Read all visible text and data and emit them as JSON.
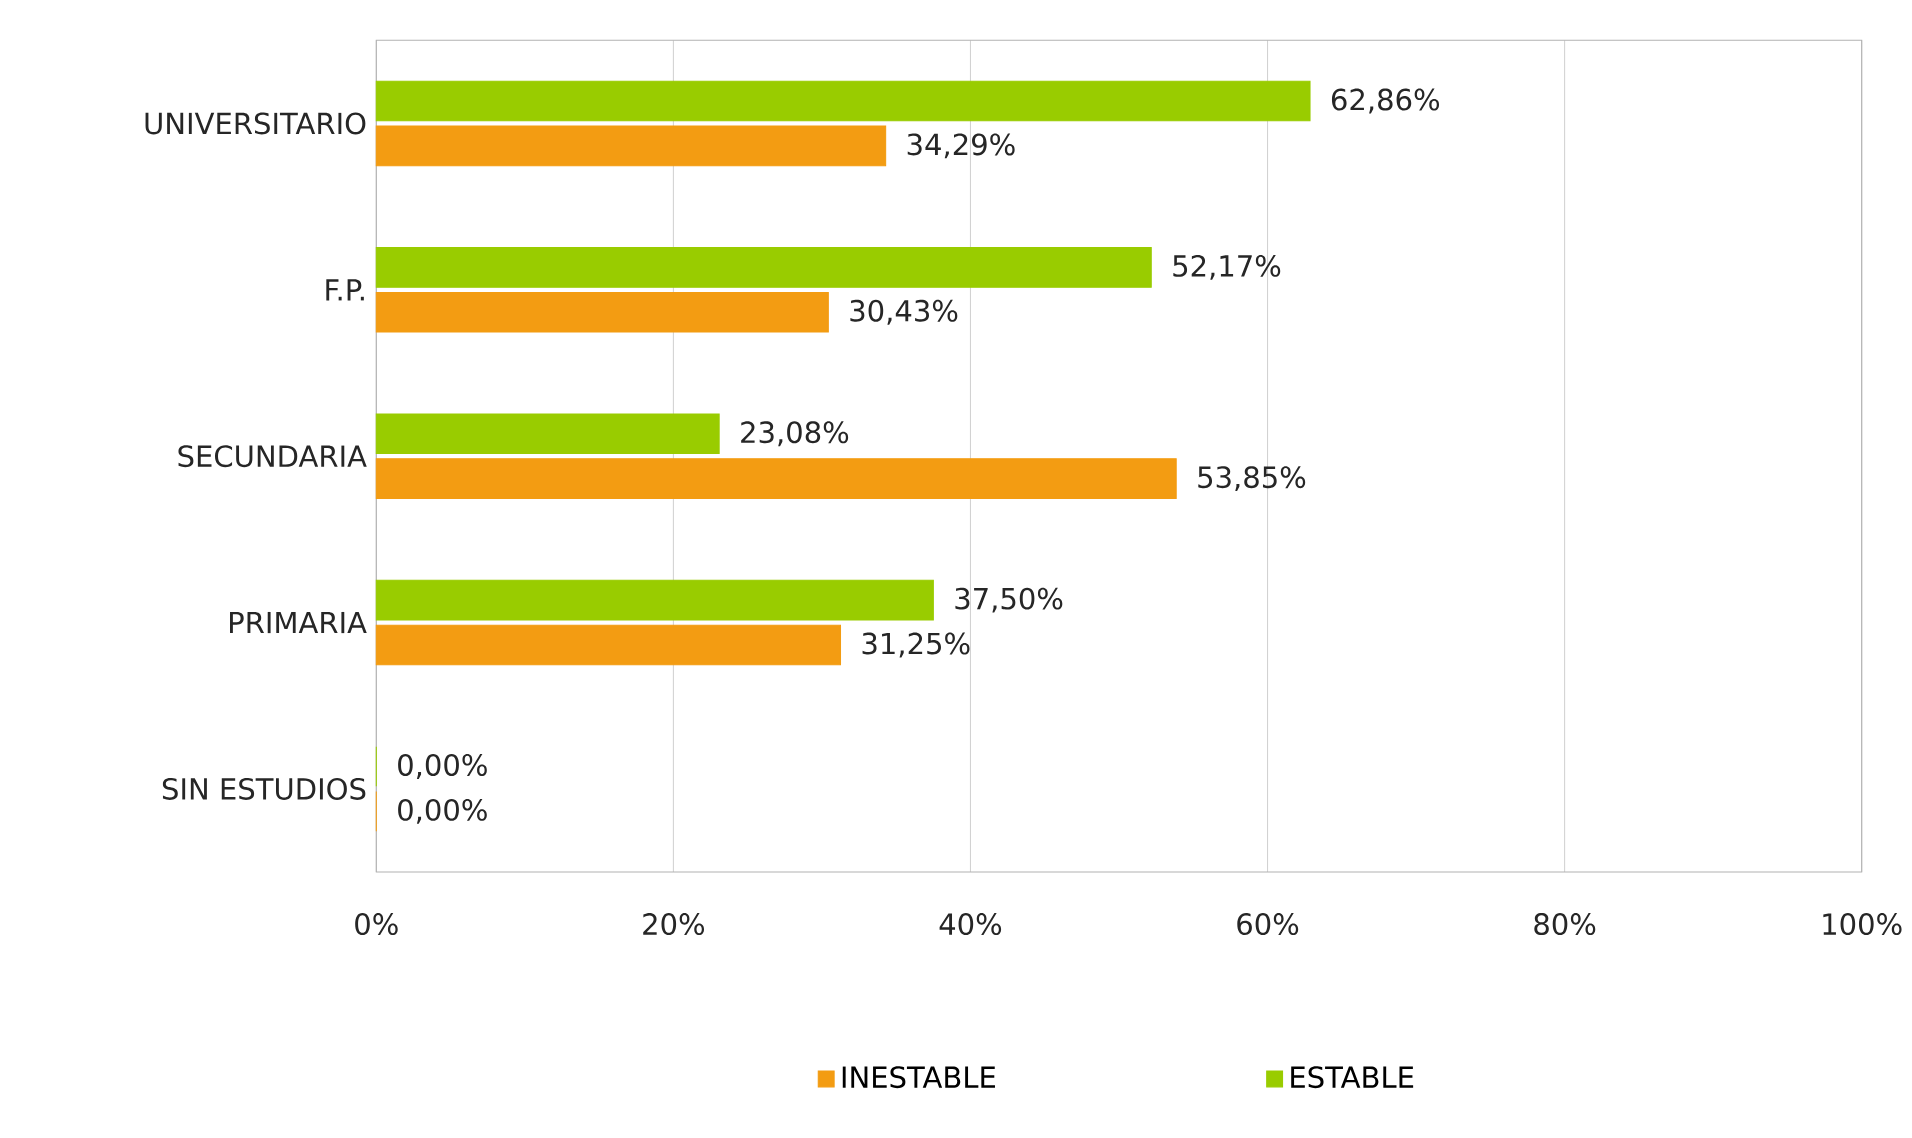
{
  "chart_data": {
    "type": "bar",
    "orientation": "horizontal",
    "categories": [
      "UNIVERSITARIO",
      "F.P.",
      "SECUNDARIA",
      "PRIMARIA",
      "SIN ESTUDIOS"
    ],
    "series": [
      {
        "name": "INESTABLE",
        "color": "#f39c12",
        "values": [
          34.29,
          30.43,
          53.85,
          31.25,
          0
        ],
        "value_labels": [
          "34,29%",
          "30,43%",
          "53,85%",
          "31,25%",
          "0,00%"
        ]
      },
      {
        "name": "ESTABLE",
        "color": "#99cc00",
        "values": [
          62.86,
          52.17,
          23.08,
          37.5,
          0
        ],
        "value_labels": [
          "62,86%",
          "52,17%",
          "23,08%",
          "37,50%",
          "0,00%"
        ]
      }
    ],
    "xlim": [
      0,
      100
    ],
    "xticks": [
      {
        "value": 0,
        "label": "0%"
      },
      {
        "value": 20,
        "label": "20%"
      },
      {
        "value": 40,
        "label": "40%"
      },
      {
        "value": 60,
        "label": "60%"
      },
      {
        "value": 80,
        "label": "80%"
      },
      {
        "value": 100,
        "label": "100%"
      }
    ],
    "grid": "x",
    "legend": "bottom"
  }
}
